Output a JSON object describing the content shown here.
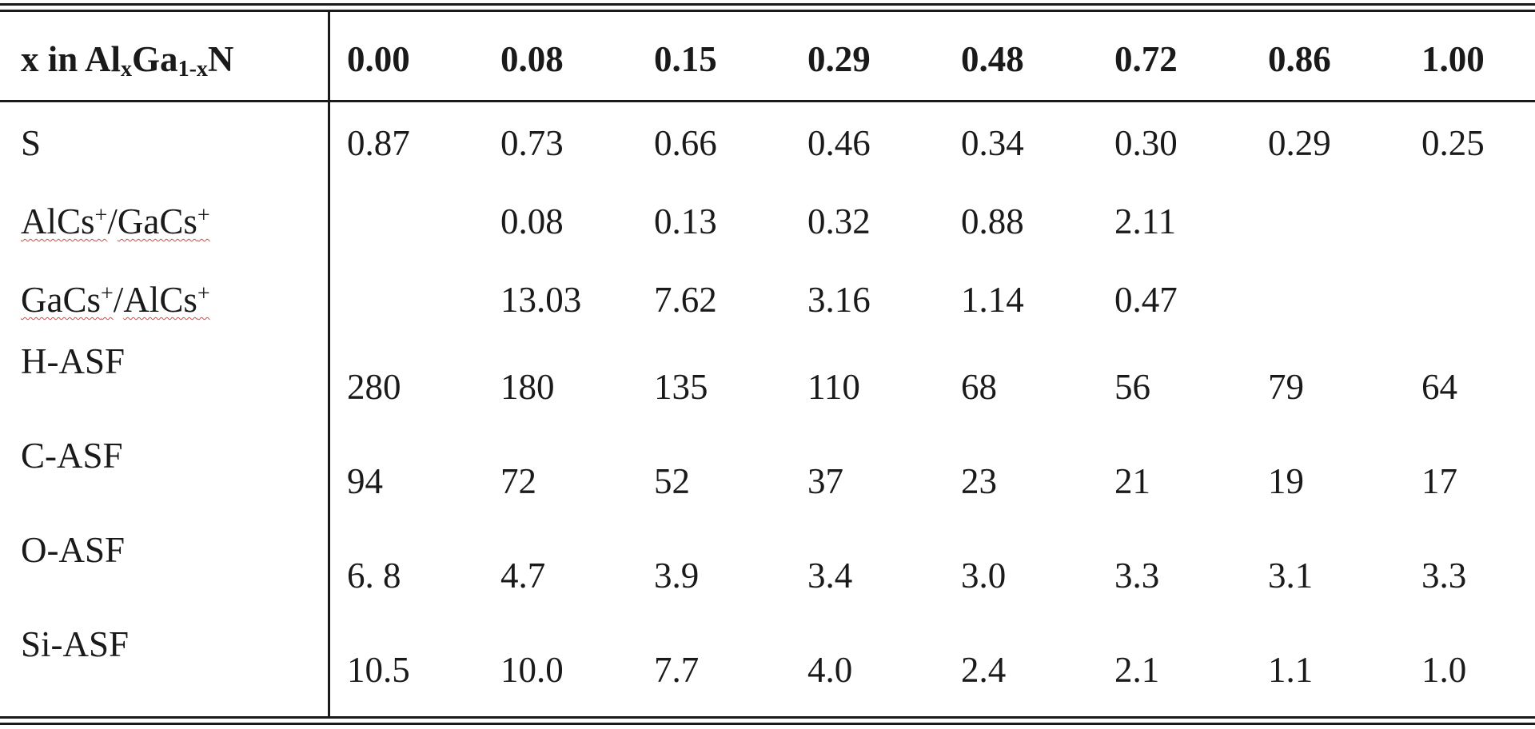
{
  "table": {
    "header": {
      "label": {
        "prefix": "x in Al",
        "sub1": "x",
        "mid": "Ga",
        "sub2": "1-x",
        "suffix": "N"
      },
      "columns": [
        "0.00",
        "0.08",
        "0.15",
        "0.29",
        "0.48",
        "0.72",
        "0.86",
        "1.00"
      ]
    },
    "rows": [
      {
        "label": "S",
        "values": [
          "0.87",
          "0.73",
          "0.66",
          "0.46",
          "0.34",
          "0.30",
          "0.29",
          "0.25"
        ]
      },
      {
        "label_parts": {
          "a": "AlCs",
          "a_sup": "+",
          "sep": "/",
          "b": "GaCs",
          "b_sup": "+"
        },
        "values": [
          "",
          "0.08",
          "0.13",
          "0.32",
          "0.88",
          "2.11",
          "",
          ""
        ]
      },
      {
        "label_parts": {
          "a": "GaCs",
          "a_sup": "+",
          "sep": "/",
          "b": "AlCs",
          "b_sup": "+"
        },
        "values": [
          "",
          "13.03",
          "7.62",
          "3.16",
          "1.14",
          "0.47",
          "",
          ""
        ]
      },
      {
        "label": "H-ASF",
        "values": [
          "280",
          "180",
          "135",
          "110",
          "68",
          "56",
          "79",
          "64"
        ]
      },
      {
        "label": "C-ASF",
        "values": [
          "94",
          "72",
          "52",
          "37",
          "23",
          "21",
          "19",
          "17"
        ]
      },
      {
        "label": "O-ASF",
        "values": [
          "6. 8",
          "4.7",
          "3.9",
          "3.4",
          "3.0",
          "3.3",
          "3.1",
          "3.3"
        ]
      },
      {
        "label": "Si-ASF",
        "values": [
          "10.5",
          "10.0",
          "7.7",
          "4.0",
          "2.4",
          "2.1",
          "1.1",
          "1.0"
        ]
      }
    ]
  }
}
